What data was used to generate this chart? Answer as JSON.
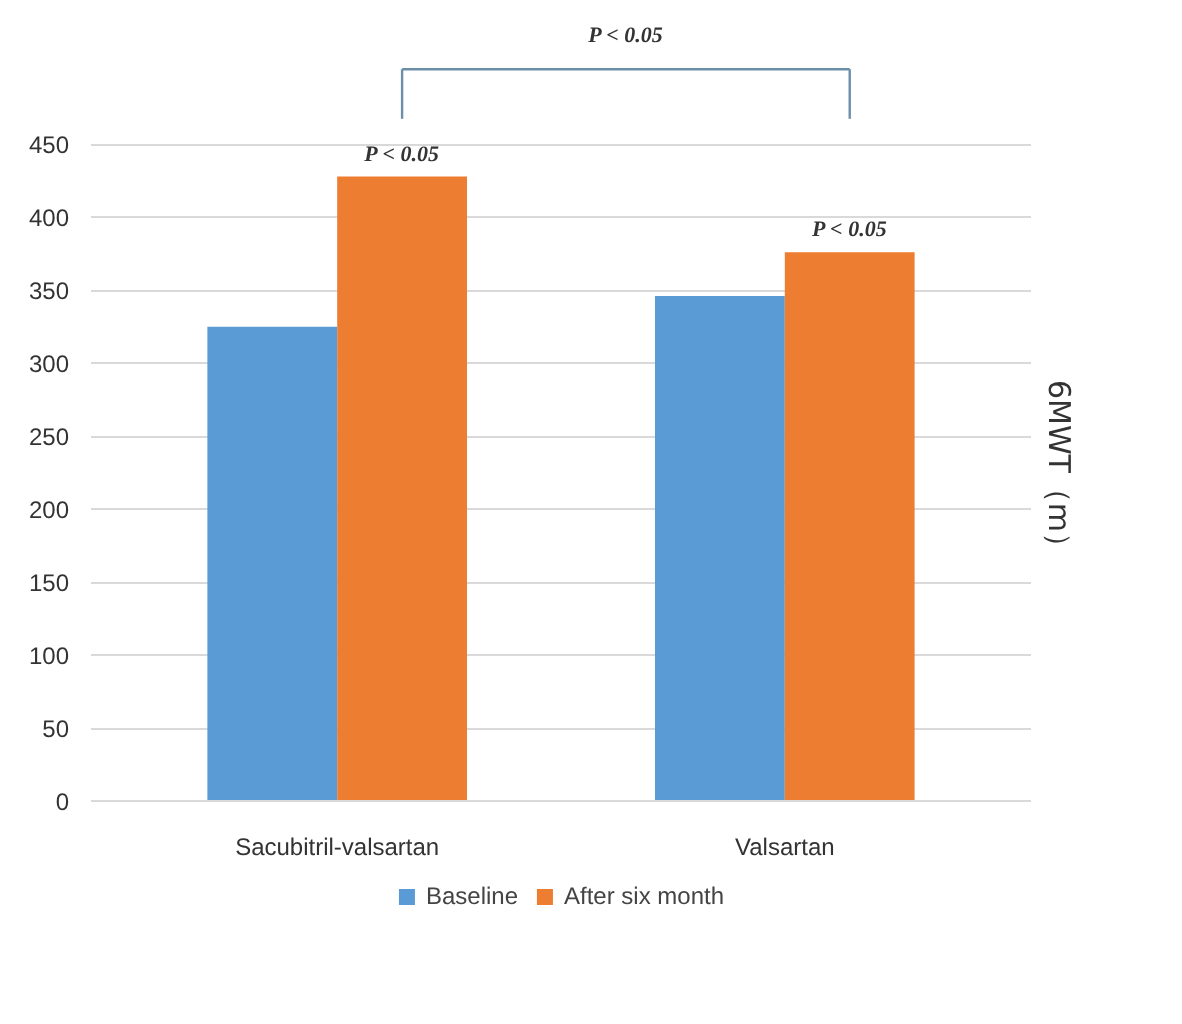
{
  "chart_data": {
    "type": "bar",
    "ylabel": "6MWT（m）",
    "categories": [
      "Sacubitril-valsartan",
      "Valsartan"
    ],
    "series": [
      {
        "name": "Baseline",
        "color": "#5b9bd5",
        "values": [
          325,
          346
        ]
      },
      {
        "name": "After six month",
        "color": "#ed7d31",
        "values": [
          428,
          376
        ]
      }
    ],
    "ylim": [
      0,
      450
    ],
    "yticks": [
      0,
      50,
      100,
      150,
      200,
      250,
      300,
      350,
      400,
      450
    ],
    "grid": "y",
    "legend": "bottom",
    "annotations": [
      "P < 0.05",
      "P < 0.05",
      "P < 0.05"
    ]
  }
}
